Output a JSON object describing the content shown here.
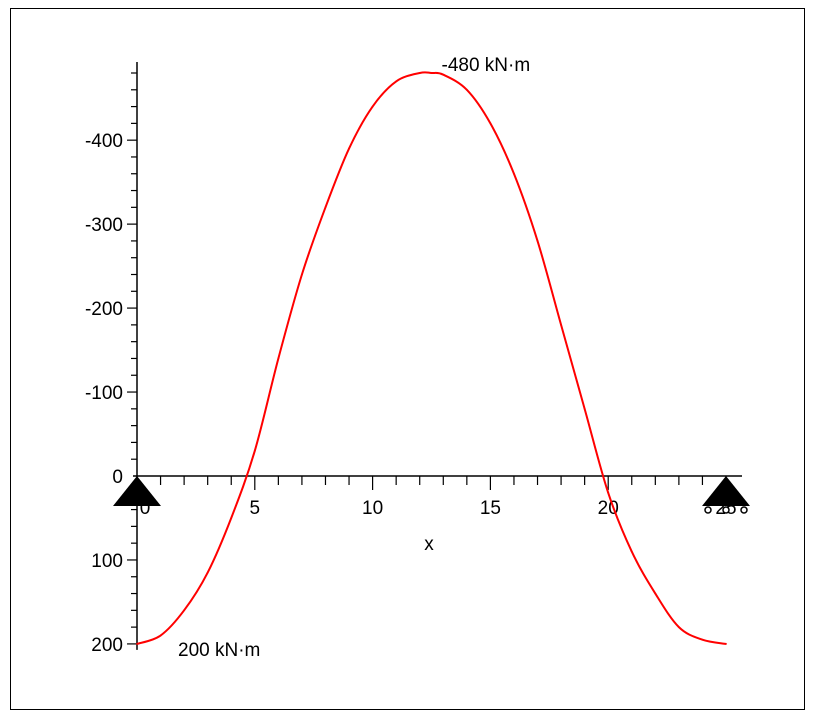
{
  "chart_data": {
    "type": "line",
    "title": "",
    "xlabel": "x",
    "ylabel": "",
    "xlim": [
      0,
      25
    ],
    "ylim": [
      200,
      -480
    ],
    "y_inverted": true,
    "grid": false,
    "x_ticks": [
      0,
      5,
      10,
      15,
      20,
      25
    ],
    "x_tick_labels": [
      "0",
      "5",
      "10",
      "15",
      "20",
      "25"
    ],
    "y_ticks": [
      200,
      100,
      0,
      -100,
      -200,
      -300,
      -400
    ],
    "y_tick_labels": [
      "200",
      "100",
      "0",
      "-100",
      "-200",
      "-300",
      "-400"
    ],
    "series": [
      {
        "color": "#ff0000",
        "x": [
          0,
          1,
          2,
          3,
          4,
          5,
          6,
          7,
          8,
          9,
          10,
          11,
          12,
          12.5,
          13,
          14,
          15,
          16,
          17,
          18,
          19,
          20,
          21,
          22,
          23,
          24,
          25
        ],
        "y": [
          200,
          190,
          160,
          115,
          50,
          -30,
          -140,
          -240,
          -320,
          -390,
          -440,
          -470,
          -480,
          -480,
          -478,
          -460,
          -420,
          -360,
          -280,
          -180,
          -80,
          20,
          90,
          140,
          180,
          195,
          200
        ]
      }
    ],
    "annotations": [
      {
        "text": "-480 kN·m",
        "x": 12.5,
        "y": -480
      },
      {
        "text": "200 kN·m",
        "x": 0,
        "y": 200
      }
    ],
    "supports": [
      {
        "type": "pin",
        "x": 0
      },
      {
        "type": "roller",
        "x": 25
      }
    ]
  }
}
